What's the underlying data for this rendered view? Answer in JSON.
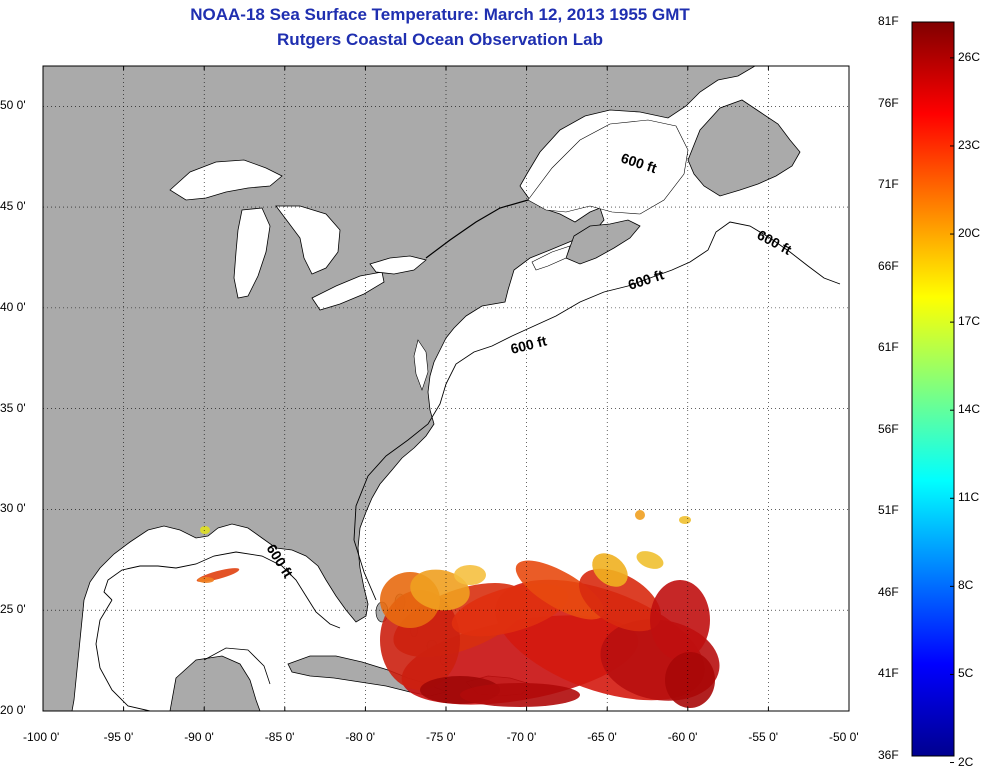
{
  "title": {
    "line1": "NOAA-18 Sea Surface Temperature:  March 12, 2013 1955 GMT",
    "line2": "Rutgers Coastal Ocean Observation Lab"
  },
  "map": {
    "lon_range": [
      -100,
      -50
    ],
    "lat_range": [
      20,
      52
    ],
    "grid": "dotted",
    "lon_ticks": [
      "-100 0'",
      "-95 0'",
      "-90 0'",
      "-85 0'",
      "-80 0'",
      "-75 0'",
      "-70 0'",
      "-65 0'",
      "-60 0'",
      "-55 0'",
      "-50 0'"
    ],
    "lat_ticks": [
      "50 0'",
      "45 0'",
      "40 0'",
      "35 0'",
      "30 0'",
      "25 0'",
      "20 0'"
    ],
    "contour_label": "600 ft",
    "land_color": "#aaaaaa",
    "water_color": "#ffffff"
  },
  "colorbar": {
    "fahrenheit_labels": [
      "81F",
      "76F",
      "71F",
      "66F",
      "61F",
      "56F",
      "51F",
      "46F",
      "41F",
      "36F"
    ],
    "celsius_labels": [
      "26C",
      "23C",
      "20C",
      "17C",
      "14C",
      "11C",
      "8C",
      "5C",
      "2C"
    ],
    "colormap": "jet",
    "min_color": "#00008f",
    "max_color": "#800000"
  }
}
